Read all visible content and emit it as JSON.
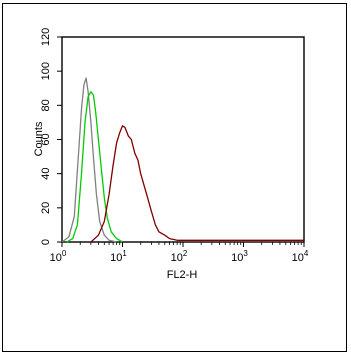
{
  "chart_data": {
    "type": "line",
    "title": "",
    "xlabel": "FL2-H",
    "ylabel": "Counts",
    "x_scale": "log",
    "xlim": [
      1,
      10000
    ],
    "ylim": [
      0,
      120
    ],
    "x_ticks": [
      {
        "base": "10",
        "exp": "0"
      },
      {
        "base": "10",
        "exp": "1"
      },
      {
        "base": "10",
        "exp": "2"
      },
      {
        "base": "10",
        "exp": "3"
      },
      {
        "base": "10",
        "exp": "4"
      }
    ],
    "y_ticks": [
      "0",
      "20",
      "40",
      "60",
      "80",
      "100",
      "120"
    ],
    "grid": false,
    "legend": "none",
    "series": [
      {
        "color": "#808080",
        "x": [
          1.0,
          1.3,
          1.6,
          1.9,
          2.1,
          2.3,
          2.5,
          2.7,
          3.0,
          3.3,
          3.7,
          4.2,
          5.0,
          6.0,
          8.0
        ],
        "y": [
          0,
          3,
          15,
          55,
          78,
          92,
          96,
          88,
          70,
          50,
          28,
          12,
          4,
          1,
          0
        ]
      },
      {
        "color": "#00cc00",
        "x": [
          1.2,
          1.5,
          1.8,
          2.1,
          2.4,
          2.7,
          3.0,
          3.3,
          3.6,
          4.0,
          4.5,
          5.0,
          5.6,
          6.5,
          8.0,
          10.0
        ],
        "y": [
          0,
          2,
          10,
          40,
          70,
          85,
          88,
          86,
          76,
          60,
          42,
          26,
          14,
          6,
          2,
          0
        ]
      },
      {
        "color": "#800000",
        "x": [
          3.0,
          4.0,
          5.0,
          6.0,
          7.0,
          8.0,
          9.0,
          10.0,
          11.0,
          12.5,
          14.0,
          16.0,
          18.0,
          20.0,
          25.0,
          30.0,
          35.0,
          40.0,
          50.0,
          60.0,
          80.0,
          100.0,
          200.0,
          500.0,
          1000.0,
          5000.0,
          10000.0
        ],
        "y": [
          0,
          4,
          12,
          28,
          45,
          58,
          64,
          68,
          67,
          62,
          60,
          52,
          48,
          40,
          28,
          18,
          10,
          6,
          4,
          2,
          1,
          1,
          1,
          1,
          1,
          1,
          1
        ]
      }
    ]
  }
}
